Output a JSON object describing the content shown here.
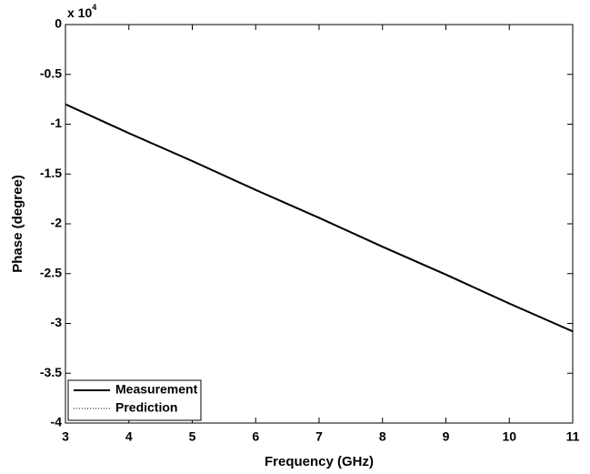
{
  "chart_data": {
    "type": "line",
    "xlabel": "Frequency (GHz)",
    "ylabel": "Phase (degree)",
    "y_multiplier": {
      "base": "x 10",
      "exponent": "4"
    },
    "x": [
      3,
      4,
      5,
      6,
      7,
      8,
      9,
      10,
      11
    ],
    "series": [
      {
        "name": "Measurement",
        "color": "#000000",
        "dash": "solid",
        "values": [
          -0.8,
          -1.09,
          -1.37,
          -1.66,
          -1.94,
          -2.23,
          -2.51,
          -2.8,
          -3.08
        ]
      },
      {
        "name": "Prediction",
        "color": "#000000",
        "dash": "dotted",
        "values": [
          -0.8,
          -1.09,
          -1.37,
          -1.66,
          -1.94,
          -2.23,
          -2.51,
          -2.8,
          -3.08
        ]
      }
    ],
    "xlim": [
      3,
      11
    ],
    "xticks": [
      3,
      4,
      5,
      6,
      7,
      8,
      9,
      10,
      11
    ],
    "ylim": [
      -4,
      0
    ],
    "yticks": [
      -4,
      -3.5,
      -3,
      -2.5,
      -2,
      -1.5,
      -1,
      -0.5,
      0
    ],
    "grid": false,
    "legend": "lower left"
  }
}
